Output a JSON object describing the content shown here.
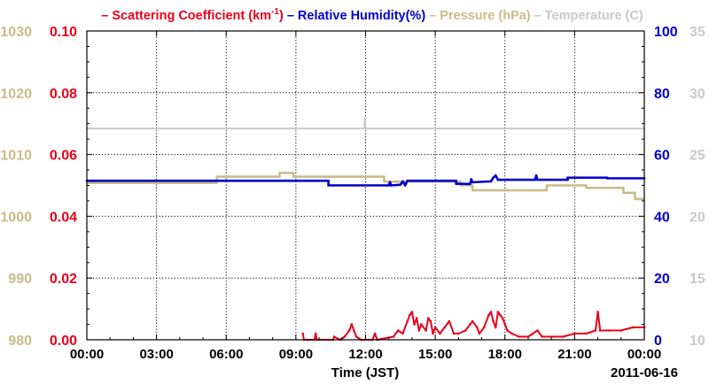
{
  "chart_data": {
    "type": "line",
    "legend": {
      "placement": "top-center",
      "entries": [
        {
          "key": "scattering",
          "prefix": "– ",
          "text": "Scattering Coefficient (km",
          "sup": "-1",
          "suffix": ")",
          "color": "#e8001c"
        },
        {
          "key": "humidity",
          "prefix": " – ",
          "text": "Relative Humidity(%)",
          "color": "#0000cc"
        },
        {
          "key": "pressure",
          "prefix": " – ",
          "text": "Pressure (hPa)",
          "color": "#c8bc88"
        },
        {
          "key": "temperature",
          "prefix": " – ",
          "text": "Temperature (C)",
          "color": "#c8c8c8"
        }
      ]
    },
    "xlabel": "Time (JST)",
    "date_label": "2011-06-16",
    "x_ticks": [
      "00:00",
      "03:00",
      "06:00",
      "09:00",
      "12:00",
      "15:00",
      "18:00",
      "21:00",
      "00:00"
    ],
    "x_range_hours": [
      0,
      24
    ],
    "grid": true,
    "axes": {
      "pressure": {
        "side": "left-outer",
        "ticks": [
          "980",
          "990",
          "1000",
          "1010",
          "1020",
          "1030"
        ],
        "range": [
          980,
          1030
        ],
        "color": "#c8bc88"
      },
      "scattering": {
        "side": "left-inner",
        "ticks": [
          "0.00",
          "0.02",
          "0.04",
          "0.06",
          "0.08",
          "0.10"
        ],
        "range": [
          0,
          0.1
        ],
        "color": "#e8001c"
      },
      "humidity": {
        "side": "right-inner",
        "ticks": [
          "0",
          "20",
          "40",
          "60",
          "80",
          "100"
        ],
        "range": [
          0,
          100
        ],
        "color": "#0000cc"
      },
      "temperature": {
        "side": "right-outer",
        "ticks": [
          "10",
          "15",
          "20",
          "25",
          "30",
          "35"
        ],
        "range": [
          10,
          35
        ],
        "color": "#c8c8c8"
      }
    },
    "series": [
      {
        "name": "Temperature (C)",
        "axis": "temperature",
        "color": "#c8c8c8",
        "points": [
          [
            0,
            27.1
          ],
          [
            11.95,
            27.1
          ],
          [
            11.97,
            27.9
          ],
          [
            12.0,
            27.1
          ],
          [
            24,
            27.1
          ]
        ]
      },
      {
        "name": "Pressure (hPa)",
        "axis": "pressure",
        "color": "#c8bc88",
        "points": [
          [
            0,
            1005.4
          ],
          [
            5.6,
            1005.4
          ],
          [
            5.6,
            1006.4
          ],
          [
            8.3,
            1006.4
          ],
          [
            8.3,
            1007.0
          ],
          [
            8.9,
            1007.0
          ],
          [
            8.9,
            1006.4
          ],
          [
            12.8,
            1006.4
          ],
          [
            12.8,
            1005.6
          ],
          [
            16.1,
            1005.6
          ],
          [
            16.1,
            1005.0
          ],
          [
            16.6,
            1005.0
          ],
          [
            16.6,
            1004.2
          ],
          [
            19.8,
            1004.2
          ],
          [
            19.8,
            1005.0
          ],
          [
            21.5,
            1005.0
          ],
          [
            21.5,
            1004.6
          ],
          [
            23.1,
            1004.6
          ],
          [
            23.1,
            1003.8
          ],
          [
            23.6,
            1003.8
          ],
          [
            23.6,
            1002.8
          ],
          [
            24,
            1002.8
          ]
        ]
      },
      {
        "name": "Relative Humidity(%)",
        "axis": "humidity",
        "color": "#0000cc",
        "points": [
          [
            0,
            51.5
          ],
          [
            10.4,
            51.5
          ],
          [
            10.4,
            50.0
          ],
          [
            13.0,
            50.0
          ],
          [
            13.05,
            51.0
          ],
          [
            13.1,
            50.0
          ],
          [
            13.5,
            50.2
          ],
          [
            13.6,
            51.3
          ],
          [
            13.7,
            50.0
          ],
          [
            13.8,
            51.5
          ],
          [
            15.9,
            51.5
          ],
          [
            15.9,
            50.5
          ],
          [
            16.5,
            50.5
          ],
          [
            16.55,
            52.0
          ],
          [
            16.6,
            51.0
          ],
          [
            17.4,
            51.3
          ],
          [
            17.5,
            52.5
          ],
          [
            17.6,
            53.2
          ],
          [
            17.7,
            51.8
          ],
          [
            19.3,
            51.8
          ],
          [
            19.35,
            53.2
          ],
          [
            19.4,
            51.8
          ],
          [
            20.7,
            51.8
          ],
          [
            20.7,
            52.5
          ],
          [
            22.4,
            52.5
          ],
          [
            22.4,
            52.3
          ],
          [
            24,
            52.3
          ]
        ]
      },
      {
        "name": "Scattering Coefficient (km-1)",
        "axis": "scattering",
        "color": "#e8001c",
        "points": [
          [
            9.3,
            0.002
          ],
          [
            9.35,
            0.0
          ],
          [
            9.8,
            0.0
          ],
          [
            9.85,
            0.002
          ],
          [
            9.9,
            0.0
          ],
          [
            10.6,
            0.0
          ],
          [
            10.65,
            0.001
          ],
          [
            10.9,
            0.0
          ],
          [
            11.1,
            0.001
          ],
          [
            11.3,
            0.003
          ],
          [
            11.4,
            0.005
          ],
          [
            11.5,
            0.003
          ],
          [
            11.6,
            0.001
          ],
          [
            11.8,
            0.0
          ],
          [
            12.3,
            0.0
          ],
          [
            12.4,
            0.002
          ],
          [
            12.5,
            0.0
          ],
          [
            13.2,
            0.001
          ],
          [
            13.4,
            0.003
          ],
          [
            13.6,
            0.002
          ],
          [
            13.8,
            0.006
          ],
          [
            13.9,
            0.008
          ],
          [
            14.0,
            0.009
          ],
          [
            14.1,
            0.005
          ],
          [
            14.2,
            0.007
          ],
          [
            14.3,
            0.003
          ],
          [
            14.4,
            0.005
          ],
          [
            14.6,
            0.003
          ],
          [
            14.7,
            0.007
          ],
          [
            14.8,
            0.006
          ],
          [
            14.9,
            0.002
          ],
          [
            15.0,
            0.004
          ],
          [
            15.2,
            0.002
          ],
          [
            15.4,
            0.004
          ],
          [
            15.6,
            0.006
          ],
          [
            15.8,
            0.002
          ],
          [
            16.0,
            0.002
          ],
          [
            16.3,
            0.003
          ],
          [
            16.5,
            0.005
          ],
          [
            16.6,
            0.006
          ],
          [
            16.8,
            0.004
          ],
          [
            16.9,
            0.002
          ],
          [
            17.1,
            0.004
          ],
          [
            17.3,
            0.008
          ],
          [
            17.4,
            0.009
          ],
          [
            17.5,
            0.006
          ],
          [
            17.6,
            0.004
          ],
          [
            17.7,
            0.009
          ],
          [
            17.8,
            0.008
          ],
          [
            17.9,
            0.007
          ],
          [
            18.0,
            0.005
          ],
          [
            18.1,
            0.003
          ],
          [
            18.3,
            0.002
          ],
          [
            18.6,
            0.001
          ],
          [
            19.0,
            0.001
          ],
          [
            19.2,
            0.002
          ],
          [
            19.4,
            0.003
          ],
          [
            19.6,
            0.001
          ],
          [
            20.0,
            0.001
          ],
          [
            20.5,
            0.001
          ],
          [
            21.0,
            0.002
          ],
          [
            21.5,
            0.002
          ],
          [
            21.9,
            0.003
          ],
          [
            22.0,
            0.009
          ],
          [
            22.1,
            0.003
          ],
          [
            22.5,
            0.003
          ],
          [
            23.0,
            0.003
          ],
          [
            23.5,
            0.004
          ],
          [
            24,
            0.004
          ]
        ]
      }
    ]
  }
}
